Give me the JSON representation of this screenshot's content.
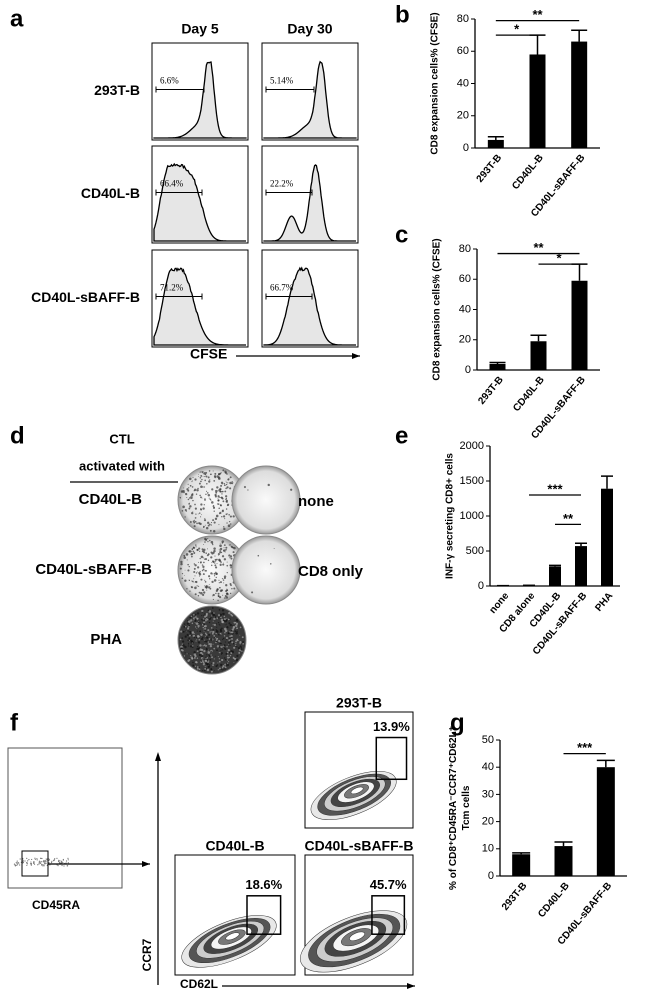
{
  "panels": {
    "a": {
      "label": "a",
      "columns": [
        "Day 5",
        "Day 30"
      ],
      "rows": [
        {
          "name": "293T-B",
          "gates": [
            "6.6%",
            "5.14%"
          ]
        },
        {
          "name": "CD40L-B",
          "gates": [
            "66.4%",
            "22.2%"
          ]
        },
        {
          "name": "CD40L-sBAFF-B",
          "gates": [
            "71.2%",
            "66.7%"
          ]
        }
      ],
      "x_axis": "CFSE"
    },
    "d": {
      "label": "d",
      "heading": [
        "CTL",
        "activated with"
      ],
      "rows": [
        "CD40L-B",
        "CD40L-sBAFF-B",
        "PHA"
      ],
      "controls": [
        "none",
        "CD8 only"
      ]
    },
    "f": {
      "label": "f",
      "gate_plot_axis": "CD45RA",
      "y_axis": "CCR7",
      "x_axis": "CD62L",
      "plots": [
        {
          "name": "293T-B",
          "gate": "13.9%"
        },
        {
          "name": "CD40L-B",
          "gate": "18.6%"
        },
        {
          "name": "CD40L-sBAFF-B",
          "gate": "45.7%"
        }
      ]
    }
  },
  "chart_data": [
    {
      "type": "bar",
      "panel_label": "b",
      "ylabel": [
        "CD8 expansion cells% (CFSE)"
      ],
      "categories": [
        "293T-B",
        "CD40L-B",
        "CD40L-sBAFF-B"
      ],
      "values": [
        5,
        58,
        66
      ],
      "errors": [
        2,
        12,
        7
      ],
      "color": "#000000",
      "ylim": [
        0,
        80
      ],
      "yticks": [
        0,
        20,
        40,
        60,
        80
      ],
      "significance": [
        {
          "text": "*",
          "y": 70,
          "span": [
            0,
            1
          ]
        },
        {
          "text": "**",
          "y": 79,
          "span": [
            0,
            2
          ]
        }
      ]
    },
    {
      "type": "bar",
      "panel_label": "c",
      "ylabel": [
        "CD8 expansion cells% (CFSE)"
      ],
      "categories": [
        "293T-B",
        "CD40L-B",
        "CD40L-sBAFF-B"
      ],
      "values": [
        4,
        19,
        59
      ],
      "errors": [
        1,
        4,
        11
      ],
      "color": "#000000",
      "ylim": [
        0,
        80
      ],
      "yticks": [
        0,
        20,
        40,
        60,
        80
      ],
      "significance": [
        {
          "text": "**",
          "y": 77,
          "span": [
            0,
            2
          ]
        },
        {
          "text": "*",
          "y": 70,
          "span": [
            1,
            2
          ]
        }
      ]
    },
    {
      "type": "bar",
      "panel_label": "e",
      "ylabel": [
        "INF-γ secreting CD8+ cells"
      ],
      "categories": [
        "none",
        "CD8 alone",
        "CD40L-B",
        "CD40L-sBAFF-B",
        "PHA"
      ],
      "values": [
        5,
        10,
        280,
        570,
        1390
      ],
      "errors": [
        0,
        0,
        15,
        40,
        180
      ],
      "color": "#000000",
      "ylim": [
        0,
        2000
      ],
      "yticks": [
        0,
        500,
        1000,
        1500,
        2000
      ],
      "significance": [
        {
          "text": "***",
          "y": 1300,
          "span": [
            1,
            3
          ]
        },
        {
          "text": "**",
          "y": 880,
          "span": [
            2,
            3
          ]
        }
      ]
    },
    {
      "type": "bar",
      "panel_label": "g",
      "ylabel": [
        "% of CD8⁺CD45RA⁻CCR7⁺CD62L⁺",
        "Tcm cells"
      ],
      "categories": [
        "293T-B",
        "CD40L-B",
        "CD40L-sBAFF-B"
      ],
      "values": [
        8,
        11,
        40
      ],
      "errors": [
        0.5,
        1.5,
        2.5
      ],
      "color": "#000000",
      "ylim": [
        0,
        50
      ],
      "yticks": [
        0,
        10,
        20,
        30,
        40,
        50
      ],
      "significance": [
        {
          "text": "***",
          "y": 45,
          "span": [
            1,
            2
          ]
        }
      ]
    }
  ]
}
